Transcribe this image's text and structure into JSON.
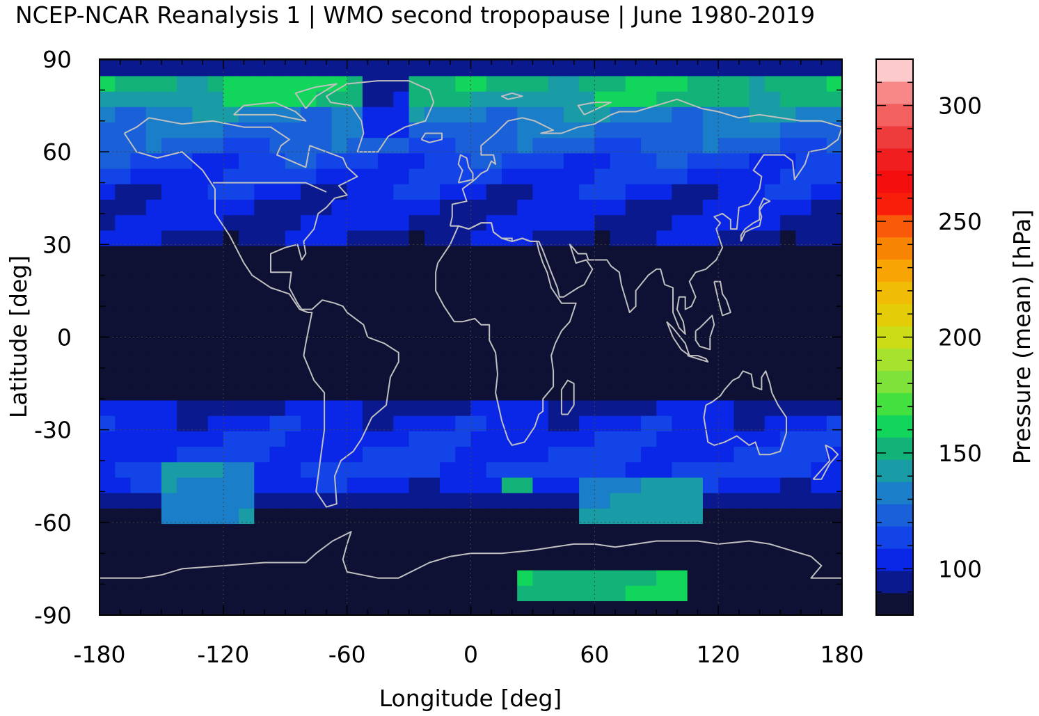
{
  "chart_data": {
    "type": "heatmap",
    "title": "NCEP-NCAR Reanalysis 1 | WMO second tropopause | June 1980-2019",
    "xlabel": "Longitude [deg]",
    "ylabel": "Latitude [deg]",
    "colorbar_label": "Pressure (mean) [hPa]",
    "xlim": [
      -180,
      180
    ],
    "ylim": [
      -90,
      90
    ],
    "x_ticks": [
      "-180",
      "-120",
      "-60",
      "0",
      "60",
      "120",
      "180"
    ],
    "y_ticks": [
      "90",
      "60",
      "30",
      "0",
      "-30",
      "-60",
      "-90"
    ],
    "colorbar_ticks": [
      "100",
      "150",
      "200",
      "250",
      "300"
    ],
    "colorbar_range": [
      80,
      320
    ],
    "grid": "dotted",
    "colors": {
      "no_data": "#0e1034",
      "coastlines": "#c0c0c0",
      "palette": [
        "#0e1034",
        "#0a1a8e",
        "#0a26e6",
        "#1244e8",
        "#1a60d8",
        "#1a7ec8",
        "#1a9ca6",
        "#12b278",
        "#12d65c",
        "#44e040",
        "#7ee23a",
        "#a6e22e",
        "#ccdc16",
        "#e4cc08",
        "#f0bc06",
        "#f8a404",
        "#f88404",
        "#f85a0a",
        "#f81e0a",
        "#f40e0e",
        "#f01e1e",
        "#ee3c3c",
        "#f26060",
        "#f88888",
        "#fccaca"
      ]
    },
    "zonal_mean_pressure_hPa": [
      {
        "lat": 87,
        "value": 92
      },
      {
        "lat": 82,
        "value": 152
      },
      {
        "lat": 77,
        "value": 145
      },
      {
        "lat": 72,
        "value": 133
      },
      {
        "lat": 67,
        "value": 127
      },
      {
        "lat": 62,
        "value": 122
      },
      {
        "lat": 57,
        "value": 113
      },
      {
        "lat": 52,
        "value": 108
      },
      {
        "lat": 47,
        "value": 104
      },
      {
        "lat": 42,
        "value": 100
      },
      {
        "lat": 37,
        "value": 100
      },
      {
        "lat": 32,
        "value": 96
      },
      {
        "lat": 27,
        "value": 88
      },
      {
        "lat": 22,
        "value": 85
      },
      {
        "lat": 17,
        "value": 85
      },
      {
        "lat": 12,
        "value": 85
      },
      {
        "lat": 7,
        "value": 85
      },
      {
        "lat": 2,
        "value": 85
      },
      {
        "lat": -3,
        "value": 85
      },
      {
        "lat": -8,
        "value": 85
      },
      {
        "lat": -13,
        "value": 85
      },
      {
        "lat": -18,
        "value": 85
      },
      {
        "lat": -23,
        "value": 98
      },
      {
        "lat": -28,
        "value": 104
      },
      {
        "lat": -33,
        "value": 106
      },
      {
        "lat": -38,
        "value": 109
      },
      {
        "lat": -43,
        "value": 112
      },
      {
        "lat": -48,
        "value": 104
      },
      {
        "lat": -53,
        "value": 90
      },
      {
        "lat": -58,
        "value": 88
      },
      {
        "lat": -63,
        "value": 85
      },
      {
        "lat": -68,
        "value": 85
      },
      {
        "lat": -73,
        "value": 85
      },
      {
        "lat": -78,
        "value": 85
      },
      {
        "lat": -83,
        "value": 85
      },
      {
        "lat": -88,
        "value": 85
      }
    ],
    "local_features": [
      {
        "lon_range": [
          -150,
          -110
        ],
        "lat_range": [
          -60,
          -40
        ],
        "value": 135
      },
      {
        "lon_range": [
          10,
          30
        ],
        "lat_range": [
          -50,
          -45
        ],
        "value": 150
      },
      {
        "lon_range": [
          50,
          110
        ],
        "lat_range": [
          -60,
          -45
        ],
        "value": 140
      },
      {
        "lon_range": [
          20,
          100
        ],
        "lat_range": [
          -85,
          -78
        ],
        "value": 155
      },
      {
        "lon_range": [
          -120,
          -55
        ],
        "lat_range": [
          75,
          85
        ],
        "value": 160
      },
      {
        "lon_range": [
          -55,
          -30
        ],
        "lat_range": [
          65,
          82
        ],
        "value": 100
      },
      {
        "lon_range": [
          60,
          130
        ],
        "lat_range": [
          75,
          85
        ],
        "value": 155
      }
    ]
  }
}
